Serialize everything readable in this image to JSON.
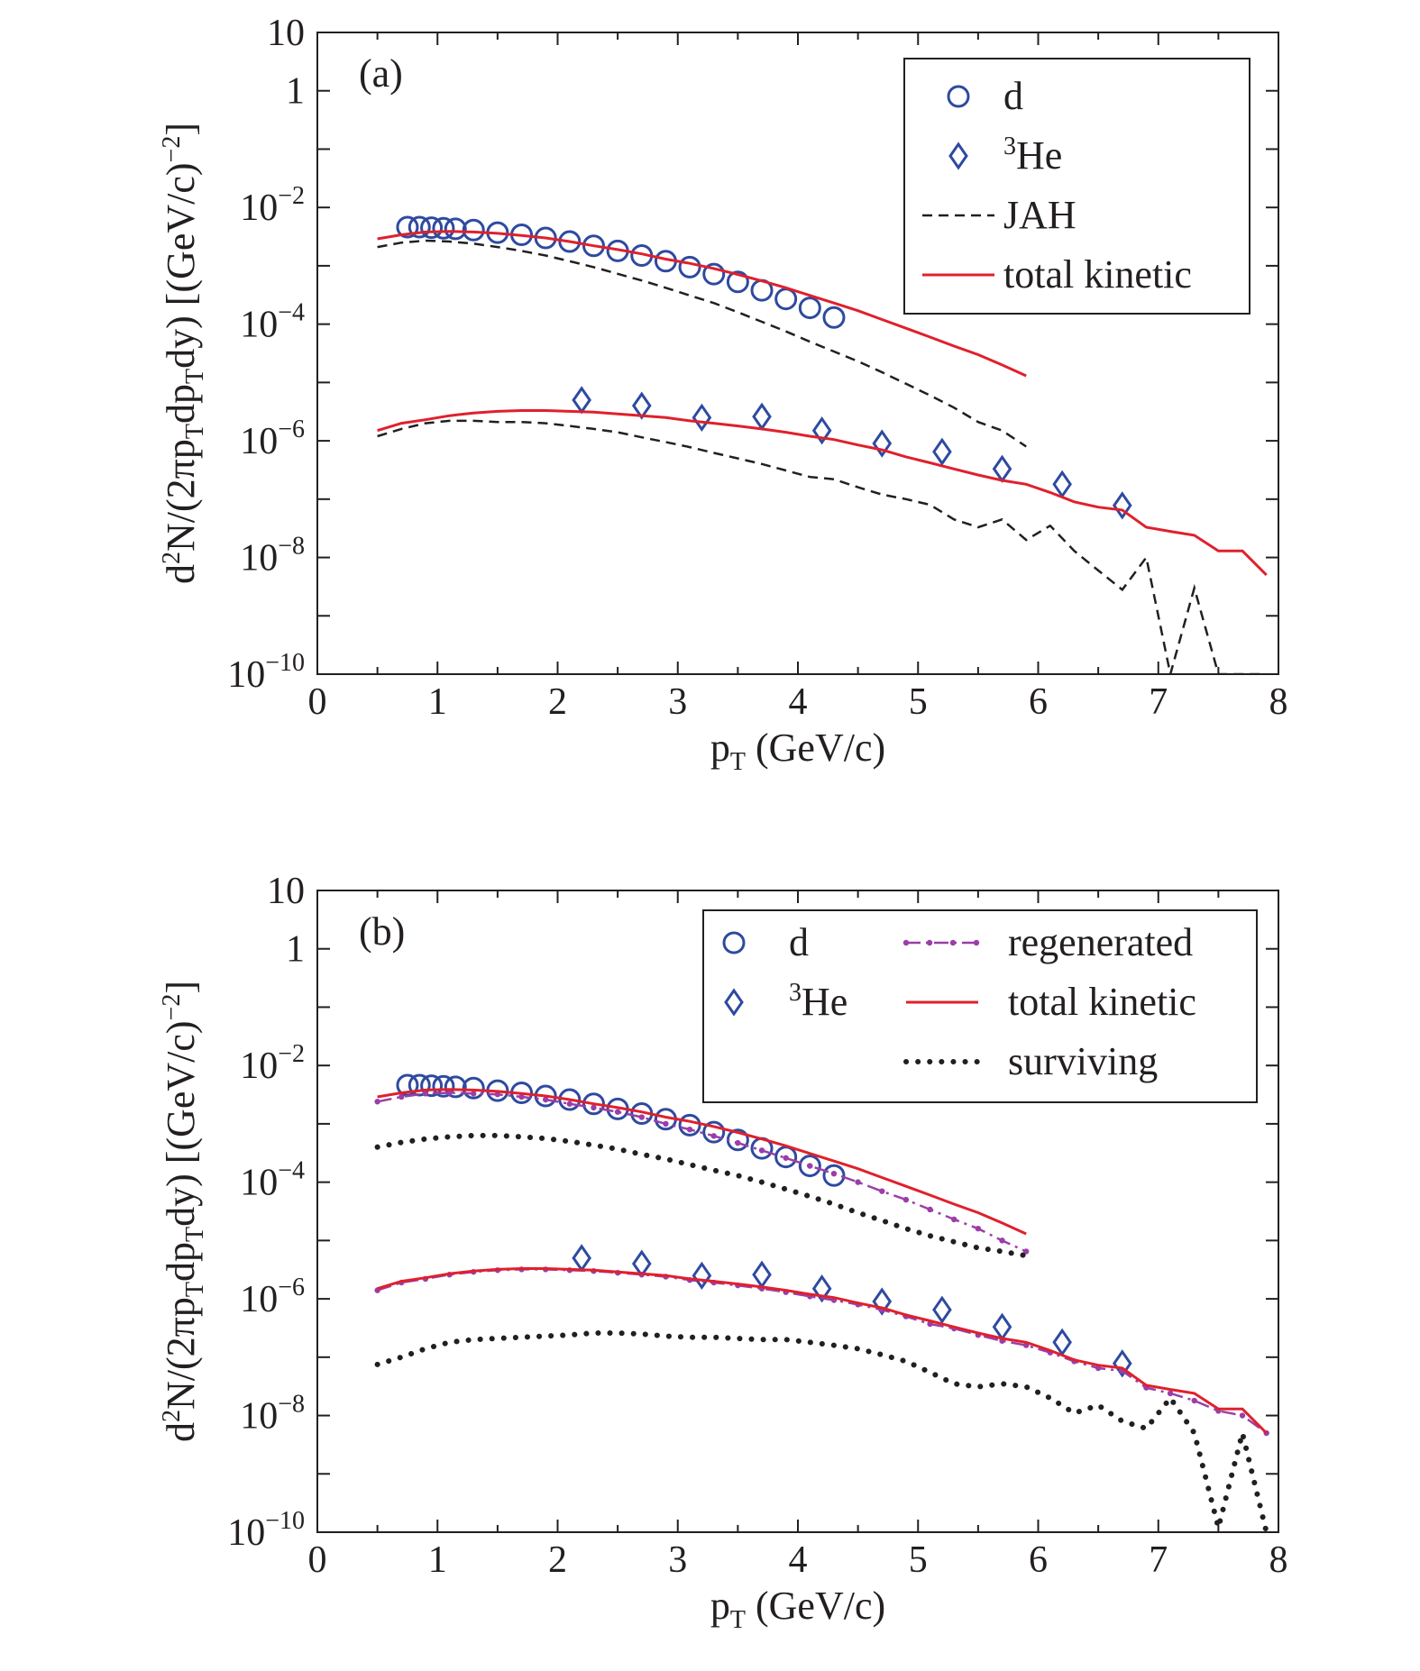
{
  "chart_data": [
    {
      "type": "line",
      "panel_label": "(a)",
      "xlabel": "p",
      "xlabel_sub": "T",
      "xlabel_rest": " (GeV/c)",
      "ylabel": "d²N/(2πp_T dp_T dy) [(GeV/c)^-2]",
      "x_tick_labels": [
        "0",
        "1",
        "2",
        "3",
        "4",
        "5",
        "6",
        "7",
        "8"
      ],
      "xlim": [
        0,
        8
      ],
      "ylim": [
        1e-10,
        10
      ],
      "yscale": "log",
      "grid": false,
      "legend_position": "top-right",
      "y_ticks": [
        {
          "value": 10,
          "base": "10",
          "exp": ""
        },
        {
          "value": 1,
          "base": "1",
          "exp": ""
        },
        {
          "value": 0.01,
          "base": "10",
          "exp": "−2"
        },
        {
          "value": 0.0001,
          "base": "10",
          "exp": "−4"
        },
        {
          "value": 1e-06,
          "base": "10",
          "exp": "−6"
        },
        {
          "value": 1e-08,
          "base": "10",
          "exp": "−8"
        },
        {
          "value": 1e-10,
          "base": "10",
          "exp": "−10"
        }
      ],
      "legend": [
        {
          "style": "circle",
          "label": "d"
        },
        {
          "style": "diamond",
          "label_sup": "3",
          "label": "He"
        },
        {
          "style": "dashed-black",
          "label": "JAH"
        },
        {
          "style": "solid-red",
          "label": "total kinetic"
        }
      ],
      "series": [
        {
          "name": "d",
          "style": "circle",
          "x": [
            0.75,
            0.85,
            0.95,
            1.05,
            1.15,
            1.3,
            1.5,
            1.7,
            1.9,
            2.1,
            2.3,
            2.5,
            2.7,
            2.9,
            3.1,
            3.3,
            3.5,
            3.7,
            3.9,
            4.1,
            4.3
          ],
          "y": [
            0.0046,
            0.0046,
            0.0045,
            0.0044,
            0.0043,
            0.0041,
            0.0037,
            0.0034,
            0.003,
            0.0026,
            0.0022,
            0.0018,
            0.0015,
            0.0012,
            0.00095,
            0.00072,
            0.00053,
            0.00038,
            0.00027,
            0.00019,
            0.00013
          ]
        },
        {
          "name": "³He",
          "style": "diamond",
          "x": [
            2.2,
            2.7,
            3.2,
            3.7,
            4.2,
            4.7,
            5.2,
            5.7,
            6.2,
            6.7
          ],
          "y": [
            5e-06,
            4e-06,
            2.5e-06,
            2.6e-06,
            1.5e-06,
            9e-07,
            6.5e-07,
            3.3e-07,
            1.8e-07,
            7.8e-08
          ]
        },
        {
          "name": "JAH",
          "style": "dashed-black",
          "x": [
            0.5,
            0.7,
            0.9,
            1.1,
            1.3,
            1.5,
            1.7,
            1.9,
            2.1,
            2.3,
            2.5,
            2.7,
            2.9,
            3.1,
            3.3,
            3.5,
            3.7,
            3.9,
            4.1,
            4.3,
            4.5,
            4.7,
            4.9,
            5.1,
            5.3,
            5.5,
            5.7,
            5.9
          ],
          "y": [
            0.0021,
            0.0025,
            0.0027,
            0.0026,
            0.0024,
            0.0021,
            0.0018,
            0.0015,
            0.0012,
            0.00095,
            0.00073,
            0.00056,
            0.00042,
            0.00031,
            0.00023,
            0.00016,
            0.00011,
            7.5e-05,
            5e-05,
            3.4e-05,
            2.3e-05,
            1.5e-05,
            9.5e-06,
            6e-06,
            3.7e-06,
            2.1e-06,
            1.5e-06,
            8e-07
          ]
        },
        {
          "name": "total kinetic",
          "style": "solid-red",
          "x": [
            0.5,
            0.7,
            0.9,
            1.1,
            1.3,
            1.5,
            1.7,
            1.9,
            2.1,
            2.3,
            2.5,
            2.7,
            2.9,
            3.1,
            3.3,
            3.5,
            3.7,
            3.9,
            4.1,
            4.3,
            4.5,
            4.7,
            4.9,
            5.1,
            5.3,
            5.5,
            5.7,
            5.9
          ],
          "y": [
            0.0029,
            0.0034,
            0.0038,
            0.0039,
            0.0038,
            0.0036,
            0.0033,
            0.003,
            0.0026,
            0.0022,
            0.0019,
            0.0016,
            0.0013,
            0.0011,
            0.0009,
            0.00071,
            0.00055,
            0.00042,
            0.00031,
            0.00023,
            0.00017,
            0.00012,
            8.5e-05,
            6e-05,
            4.2e-05,
            3e-05,
            2e-05,
            1.3e-05
          ]
        },
        {
          "name": "JAH",
          "style": "dashed-black",
          "x": [
            0.5,
            0.7,
            0.9,
            1.1,
            1.3,
            1.5,
            1.7,
            1.9,
            2.1,
            2.3,
            2.5,
            2.7,
            2.9,
            3.1,
            3.3,
            3.5,
            3.7,
            3.9,
            4.1,
            4.3,
            4.5,
            4.7,
            4.9,
            5.1,
            5.3,
            5.5,
            5.7,
            5.9,
            6.1,
            6.3,
            6.5,
            6.7,
            6.9,
            7.1,
            7.3,
            7.5,
            7.7,
            7.9
          ],
          "y": [
            1.2e-06,
            1.6e-06,
            2e-06,
            2.2e-06,
            2.2e-06,
            2.1e-06,
            2.1e-06,
            2e-06,
            1.8e-06,
            1.6e-06,
            1.4e-06,
            1.15e-06,
            9.5e-07,
            7.8e-07,
            6.2e-07,
            5e-07,
            4e-07,
            3.1e-07,
            2.4e-07,
            2.2e-07,
            1.6e-07,
            1.2e-07,
            1e-07,
            8e-08,
            4.5e-08,
            3.3e-08,
            4.5e-08,
            2e-08,
            3.5e-08,
            1.3e-08,
            6e-09,
            2.8e-09,
            1e-08,
            1e-10,
            3e-09,
            1e-10,
            1e-10,
            1e-10
          ]
        },
        {
          "name": "total kinetic",
          "style": "solid-red",
          "x": [
            0.5,
            0.7,
            0.9,
            1.1,
            1.3,
            1.5,
            1.7,
            1.9,
            2.1,
            2.3,
            2.5,
            2.7,
            2.9,
            3.1,
            3.3,
            3.5,
            3.7,
            3.9,
            4.1,
            4.3,
            4.5,
            4.7,
            4.9,
            5.1,
            5.3,
            5.5,
            5.7,
            5.9,
            6.1,
            6.3,
            6.5,
            6.7,
            6.9,
            7.1,
            7.3,
            7.5,
            7.7,
            7.9
          ],
          "y": [
            1.5e-06,
            2e-06,
            2.3e-06,
            2.7e-06,
            3e-06,
            3.2e-06,
            3.3e-06,
            3.3e-06,
            3.2e-06,
            3.1e-06,
            2.9e-06,
            2.7e-06,
            2.5e-06,
            2.2e-06,
            2e-06,
            1.8e-06,
            1.6e-06,
            1.4e-06,
            1.2e-06,
            1.05e-06,
            8.5e-07,
            7e-07,
            5.3e-07,
            4.2e-07,
            3.3e-07,
            2.6e-07,
            2.1e-07,
            1.8e-07,
            1.3e-07,
            9e-08,
            7.3e-08,
            6.5e-08,
            3.3e-08,
            2.8e-08,
            2.4e-08,
            1.3e-08,
            1.3e-08,
            5e-09
          ]
        }
      ]
    },
    {
      "type": "line",
      "panel_label": "(b)",
      "xlabel": "p",
      "xlabel_sub": "T",
      "xlabel_rest": " (GeV/c)",
      "ylabel": "d²N/(2πp_T dp_T dy) [(GeV/c)^-2]",
      "x_tick_labels": [
        "0",
        "1",
        "2",
        "3",
        "4",
        "5",
        "6",
        "7",
        "8"
      ],
      "xlim": [
        0,
        8
      ],
      "ylim": [
        1e-10,
        10
      ],
      "yscale": "log",
      "grid": false,
      "legend_position": "top-right",
      "y_ticks": [
        {
          "value": 10,
          "base": "10",
          "exp": ""
        },
        {
          "value": 1,
          "base": "1",
          "exp": ""
        },
        {
          "value": 0.01,
          "base": "10",
          "exp": "−2"
        },
        {
          "value": 0.0001,
          "base": "10",
          "exp": "−4"
        },
        {
          "value": 1e-06,
          "base": "10",
          "exp": "−6"
        },
        {
          "value": 1e-08,
          "base": "10",
          "exp": "−8"
        },
        {
          "value": 1e-10,
          "base": "10",
          "exp": "−10"
        }
      ],
      "legend": [
        {
          "style": "circle",
          "label": "d"
        },
        {
          "style": "diamond",
          "label_sup": "3",
          "label": "He"
        },
        {
          "style": "dashdot-purple",
          "label": "regenerated"
        },
        {
          "style": "solid-red",
          "label": "total kinetic"
        },
        {
          "style": "dotted-black",
          "label": "surviving"
        }
      ],
      "series": [
        {
          "name": "d",
          "style": "circle",
          "x": [
            0.75,
            0.85,
            0.95,
            1.05,
            1.15,
            1.3,
            1.5,
            1.7,
            1.9,
            2.1,
            2.3,
            2.5,
            2.7,
            2.9,
            3.1,
            3.3,
            3.5,
            3.7,
            3.9,
            4.1,
            4.3
          ],
          "y": [
            0.0046,
            0.0046,
            0.0045,
            0.0044,
            0.0043,
            0.0041,
            0.0037,
            0.0034,
            0.003,
            0.0026,
            0.0022,
            0.0018,
            0.0015,
            0.0012,
            0.00095,
            0.00072,
            0.00053,
            0.00038,
            0.00027,
            0.00019,
            0.00013
          ]
        },
        {
          "name": "³He",
          "style": "diamond",
          "x": [
            2.2,
            2.7,
            3.2,
            3.7,
            4.2,
            4.7,
            5.2,
            5.7,
            6.2,
            6.7
          ],
          "y": [
            5e-06,
            4e-06,
            2.5e-06,
            2.6e-06,
            1.5e-06,
            9e-07,
            6.5e-07,
            3.3e-07,
            1.8e-07,
            7.8e-08
          ]
        },
        {
          "name": "regenerated",
          "style": "dashdot-purple",
          "x": [
            0.5,
            0.7,
            0.9,
            1.1,
            1.3,
            1.5,
            1.7,
            1.9,
            2.1,
            2.3,
            2.5,
            2.7,
            2.9,
            3.1,
            3.3,
            3.5,
            3.7,
            3.9,
            4.1,
            4.3,
            4.5,
            4.7,
            4.9,
            5.1,
            5.3,
            5.5,
            5.7,
            5.9
          ],
          "y": [
            0.0024,
            0.0029,
            0.0033,
            0.0034,
            0.0033,
            0.0032,
            0.0029,
            0.0026,
            0.0022,
            0.0019,
            0.0016,
            0.0013,
            0.001,
            0.0008,
            0.00062,
            0.00047,
            0.00035,
            0.00026,
            0.00019,
            0.00014,
            0.0001,
            7e-05,
            5e-05,
            3.4e-05,
            2.3e-05,
            1.6e-05,
            1e-05,
            6.5e-06
          ]
        },
        {
          "name": "total kinetic",
          "style": "solid-red",
          "x": [
            0.5,
            0.7,
            0.9,
            1.1,
            1.3,
            1.5,
            1.7,
            1.9,
            2.1,
            2.3,
            2.5,
            2.7,
            2.9,
            3.1,
            3.3,
            3.5,
            3.7,
            3.9,
            4.1,
            4.3,
            4.5,
            4.7,
            4.9,
            5.1,
            5.3,
            5.5,
            5.7,
            5.9
          ],
          "y": [
            0.0029,
            0.0034,
            0.0038,
            0.0039,
            0.0038,
            0.0036,
            0.0033,
            0.003,
            0.0026,
            0.0022,
            0.0019,
            0.0016,
            0.0013,
            0.0011,
            0.0009,
            0.00071,
            0.00055,
            0.00042,
            0.00031,
            0.00023,
            0.00017,
            0.00012,
            8.5e-05,
            6e-05,
            4.2e-05,
            3e-05,
            2e-05,
            1.3e-05
          ]
        },
        {
          "name": "surviving",
          "style": "dotted-black",
          "x": [
            0.5,
            0.7,
            0.9,
            1.1,
            1.3,
            1.5,
            1.7,
            1.9,
            2.1,
            2.3,
            2.5,
            2.7,
            2.9,
            3.1,
            3.3,
            3.5,
            3.7,
            3.9,
            4.1,
            4.3,
            4.5,
            4.7,
            4.9,
            5.1,
            5.3,
            5.5,
            5.7,
            5.9
          ],
          "y": [
            0.0004,
            0.00048,
            0.00055,
            0.0006,
            0.00063,
            0.00063,
            0.0006,
            0.00056,
            0.0005,
            0.00043,
            0.00037,
            0.0003,
            0.00025,
            0.0002,
            0.00016,
            0.00013,
            0.0001,
            7.6e-05,
            5.7e-05,
            4.2e-05,
            3e-05,
            2.2e-05,
            1.6e-05,
            1.2e-05,
            9.5e-06,
            7.5e-06,
            6.5e-06,
            5.5e-06
          ]
        },
        {
          "name": "regenerated",
          "style": "dashdot-purple",
          "x": [
            0.5,
            0.7,
            0.9,
            1.1,
            1.3,
            1.5,
            1.7,
            1.9,
            2.1,
            2.3,
            2.5,
            2.7,
            2.9,
            3.1,
            3.3,
            3.5,
            3.7,
            3.9,
            4.1,
            4.3,
            4.5,
            4.7,
            4.9,
            5.1,
            5.3,
            5.5,
            5.7,
            5.9,
            6.1,
            6.3,
            6.5,
            6.7,
            6.9,
            7.1,
            7.3,
            7.5,
            7.7,
            7.9
          ],
          "y": [
            1.4e-06,
            1.9e-06,
            2.2e-06,
            2.6e-06,
            2.9e-06,
            3.1e-06,
            3.2e-06,
            3.2e-06,
            3.1e-06,
            3e-06,
            2.8e-06,
            2.6e-06,
            2.4e-06,
            2.1e-06,
            1.9e-06,
            1.7e-06,
            1.5e-06,
            1.3e-06,
            1.1e-06,
            9.5e-07,
            8e-07,
            6.5e-07,
            5e-07,
            3.7e-07,
            3.1e-07,
            2.4e-07,
            1.9e-07,
            1.6e-07,
            1.2e-07,
            8.5e-08,
            6.5e-08,
            5.8e-08,
            3e-08,
            2.4e-08,
            1.8e-08,
            1.2e-08,
            1e-08,
            5e-09
          ]
        },
        {
          "name": "total kinetic",
          "style": "solid-red",
          "x": [
            0.5,
            0.7,
            0.9,
            1.1,
            1.3,
            1.5,
            1.7,
            1.9,
            2.1,
            2.3,
            2.5,
            2.7,
            2.9,
            3.1,
            3.3,
            3.5,
            3.7,
            3.9,
            4.1,
            4.3,
            4.5,
            4.7,
            4.9,
            5.1,
            5.3,
            5.5,
            5.7,
            5.9,
            6.1,
            6.3,
            6.5,
            6.7,
            6.9,
            7.1,
            7.3,
            7.5,
            7.7,
            7.9
          ],
          "y": [
            1.5e-06,
            2e-06,
            2.3e-06,
            2.7e-06,
            3e-06,
            3.2e-06,
            3.3e-06,
            3.3e-06,
            3.2e-06,
            3.1e-06,
            2.9e-06,
            2.7e-06,
            2.5e-06,
            2.2e-06,
            2e-06,
            1.8e-06,
            1.6e-06,
            1.4e-06,
            1.2e-06,
            1.05e-06,
            8.5e-07,
            7e-07,
            5.3e-07,
            4.2e-07,
            3.3e-07,
            2.6e-07,
            2.1e-07,
            1.8e-07,
            1.3e-07,
            9e-08,
            7.3e-08,
            6.5e-08,
            3.3e-08,
            2.8e-08,
            2.4e-08,
            1.3e-08,
            1.3e-08,
            5e-09
          ]
        },
        {
          "name": "surviving",
          "style": "dotted-black",
          "x": [
            0.5,
            0.7,
            0.9,
            1.1,
            1.3,
            1.5,
            1.7,
            1.9,
            2.1,
            2.3,
            2.5,
            2.7,
            2.9,
            3.1,
            3.3,
            3.5,
            3.7,
            3.9,
            4.1,
            4.3,
            4.5,
            4.7,
            4.9,
            5.1,
            5.3,
            5.5,
            5.7,
            5.9,
            6.1,
            6.3,
            6.5,
            6.7,
            6.9,
            7.1,
            7.3,
            7.5,
            7.7,
            7.9
          ],
          "y": [
            7.5e-08,
            1e-07,
            1.4e-07,
            1.8e-07,
            2e-07,
            2.1e-07,
            2.2e-07,
            2.3e-07,
            2.4e-07,
            2.6e-07,
            2.6e-07,
            2.5e-07,
            2.3e-07,
            2.2e-07,
            2.2e-07,
            2.1e-07,
            2e-07,
            2e-07,
            1.8e-07,
            1.6e-07,
            1.4e-07,
            1.1e-07,
            8.5e-08,
            5.5e-08,
            3.5e-08,
            3.1e-08,
            3.5e-08,
            3.1e-08,
            2e-08,
            1.1e-08,
            1.5e-08,
            8e-09,
            6e-09,
            2e-08,
            5e-09,
            1.2e-10,
            5e-09,
            1e-10
          ]
        }
      ]
    }
  ]
}
